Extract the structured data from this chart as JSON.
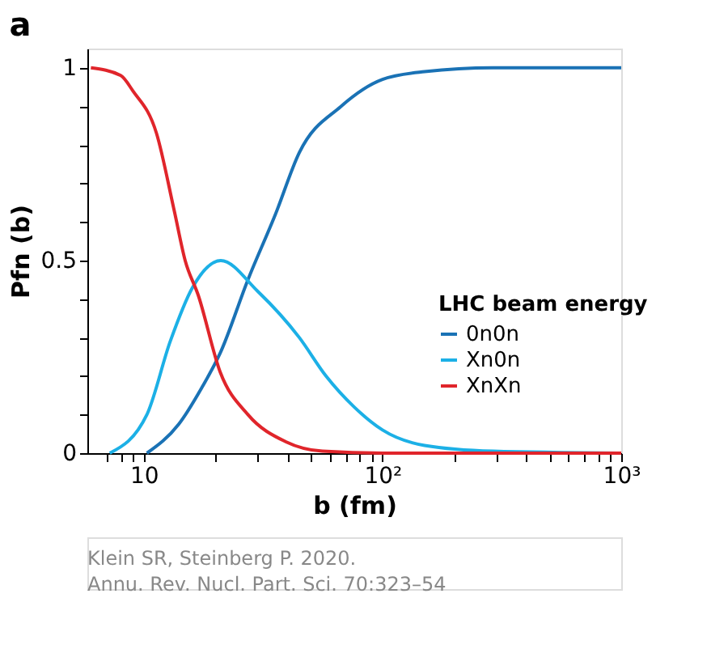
{
  "chart_data": {
    "type": "line",
    "title": "a",
    "xlabel": "b (fm)",
    "ylabel": "Pfn (b)",
    "legend_title": "LHC beam energy",
    "log": "x",
    "xlim": [
      5.8,
      1000
    ],
    "ylim": [
      0,
      1.05
    ],
    "xticks": [
      {
        "value": 7,
        "label": null
      },
      {
        "value": 8,
        "label": null
      },
      {
        "value": 9,
        "label": null
      },
      10,
      {
        "value": 20,
        "label": null
      },
      {
        "value": 30,
        "label": null
      },
      {
        "value": 40,
        "label": null
      },
      {
        "value": 50,
        "label": null
      },
      {
        "value": 60,
        "label": null
      },
      {
        "value": 70,
        "label": null
      },
      {
        "value": 80,
        "label": null
      },
      {
        "value": 90,
        "label": null
      },
      {
        "value": 100,
        "label": "10²"
      },
      {
        "value": 200,
        "label": null
      },
      {
        "value": 300,
        "label": null
      },
      {
        "value": 400,
        "label": null
      },
      {
        "value": 500,
        "label": null
      },
      {
        "value": 600,
        "label": null
      },
      {
        "value": 700,
        "label": null
      },
      {
        "value": 800,
        "label": null
      },
      {
        "value": 900,
        "label": null
      },
      {
        "value": 1000,
        "label": "10³"
      }
    ],
    "yticks": [
      0,
      {
        "value": 0.1,
        "label": null
      },
      {
        "value": 0.2,
        "label": null
      },
      {
        "value": 0.3,
        "label": null
      },
      {
        "value": 0.4,
        "label": null
      },
      0.5,
      {
        "value": 0.6,
        "label": null
      },
      {
        "value": 0.7,
        "label": null
      },
      {
        "value": 0.8,
        "label": null
      },
      {
        "value": 0.9,
        "label": null
      },
      1
    ],
    "grid": false,
    "legend": "bottom right",
    "marker": "none",
    "line_style": "solid",
    "series": [
      {
        "name": "0n0n",
        "color": "#1a72b5",
        "x": [
          10.3,
          14,
          17.5,
          20.9,
          27.3,
          35.6,
          44.8,
          67,
          100,
          150,
          290,
          1000
        ],
        "values": [
          0,
          0.075,
          0.17,
          0.26,
          0.45,
          0.62,
          0.78,
          0.9,
          0.97,
          0.99,
          1.0,
          1.0
        ]
      },
      {
        "name": "Xn0n",
        "color": "#1cb0e6",
        "x": [
          7.2,
          10.3,
          12.9,
          16,
          21,
          30,
          44.8,
          58,
          76,
          100,
          150,
          290,
          1000
        ],
        "values": [
          0,
          0.1,
          0.29,
          0.43,
          0.5,
          0.42,
          0.3,
          0.2,
          0.12,
          0.06,
          0.02,
          0.005,
          0
        ]
      },
      {
        "name": "XnXn",
        "color": "#e0252b",
        "x": [
          6,
          8,
          9,
          11.3,
          13.4,
          14.9,
          16.9,
          20.9,
          27.3,
          39.2,
          56,
          100,
          1000
        ],
        "values": [
          1,
          0.98,
          0.94,
          0.83,
          0.63,
          0.5,
          0.41,
          0.21,
          0.1,
          0.03,
          0.005,
          0,
          0
        ]
      }
    ],
    "annotations": [
      "Klein SR, Steinberg P. 2020.",
      "Annu. Rev. Nucl. Part. Sci. 70:323–54"
    ]
  }
}
